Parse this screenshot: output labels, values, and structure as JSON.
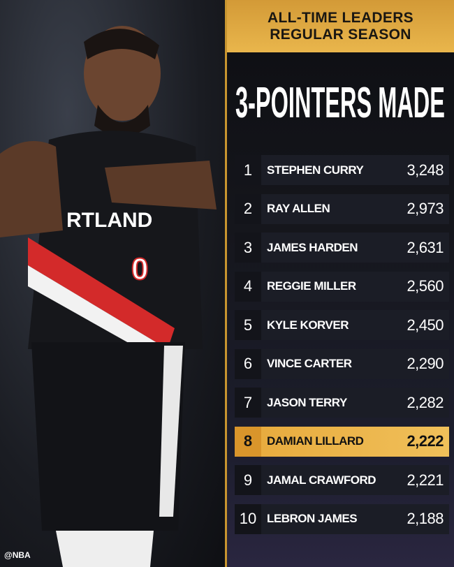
{
  "header": {
    "line1": "ALL-TIME LEADERS",
    "line2": "REGULAR SEASON"
  },
  "title": "3-POINTERS MADE",
  "highlight_color": "#e9b04a",
  "photo": {
    "jersey_text": "RTLAND",
    "jersey_number": "0",
    "watermark": "@NBA"
  },
  "leaders": [
    {
      "rank": "1",
      "name": "STEPHEN CURRY",
      "value": "3,248"
    },
    {
      "rank": "2",
      "name": "RAY ALLEN",
      "value": "2,973"
    },
    {
      "rank": "3",
      "name": "JAMES HARDEN",
      "value": "2,631"
    },
    {
      "rank": "4",
      "name": "REGGIE MILLER",
      "value": "2,560"
    },
    {
      "rank": "5",
      "name": "KYLE KORVER",
      "value": "2,450"
    },
    {
      "rank": "6",
      "name": "VINCE CARTER",
      "value": "2,290"
    },
    {
      "rank": "7",
      "name": "JASON TERRY",
      "value": "2,282"
    },
    {
      "rank": "8",
      "name": "DAMIAN LILLARD",
      "value": "2,222",
      "highlighted": true
    },
    {
      "rank": "9",
      "name": "JAMAL CRAWFORD",
      "value": "2,221"
    },
    {
      "rank": "10",
      "name": "LEBRON JAMES",
      "value": "2,188"
    }
  ]
}
